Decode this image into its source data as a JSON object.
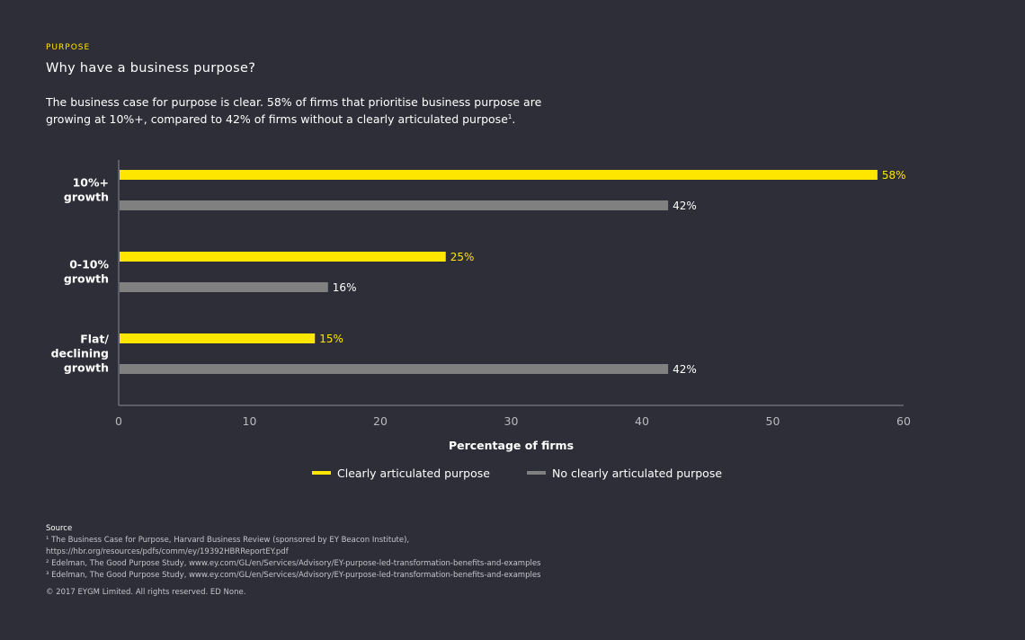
{
  "header": {
    "eyebrow": "PURPOSE",
    "title": "Why have a business purpose?",
    "intro_main": "The business case for purpose is clear. 58% of firms that prioritise business purpose are growing at 10%+, compared to 42% of firms without a clearly articulated purpose",
    "intro_sup": "1",
    "intro_end": "."
  },
  "chart_data": {
    "type": "bar",
    "orientation": "horizontal",
    "categories": [
      [
        "10%+",
        "growth"
      ],
      [
        "0-10%",
        "growth"
      ],
      [
        "Flat/",
        "declining",
        "growth"
      ]
    ],
    "series": [
      {
        "name": "Clearly articulated purpose",
        "values": [
          58,
          25,
          15
        ],
        "labels": [
          "58%",
          "25%",
          "15%"
        ],
        "color": "#ffe600",
        "label_color": "#ffe600"
      },
      {
        "name": "No clearly articulated purpose",
        "values": [
          42,
          16,
          42
        ],
        "labels": [
          "42%",
          "16%",
          "42%"
        ],
        "color": "#808080",
        "label_color": "#ffffff"
      }
    ],
    "xlim": [
      0,
      60
    ],
    "xticks": [
      "0",
      "10",
      "20",
      "30",
      "40",
      "50",
      "60"
    ],
    "xlabel": "Percentage of firms",
    "legend_position": "bottom-center",
    "grid": false
  },
  "footer": {
    "source_label": "Source",
    "sources": [
      "¹ The Business Case for Purpose, Harvard Business Review (sponsored by EY Beacon Institute),",
      "https://hbr.org/resources/pdfs/comm/ey/19392HBRReportEY.pdf",
      "² Edelman, The Good Purpose Study, www.ey.com/GL/en/Services/Advisory/EY-purpose-led-transformation-benefits-and-examples",
      "³ Edelman, The Good Purpose Study, www.ey.com/GL/en/Services/Advisory/EY-purpose-led-transformation-benefits-and-examples"
    ],
    "copyright": "© 2017 EYGM Limited. All rights reserved. ED None."
  }
}
